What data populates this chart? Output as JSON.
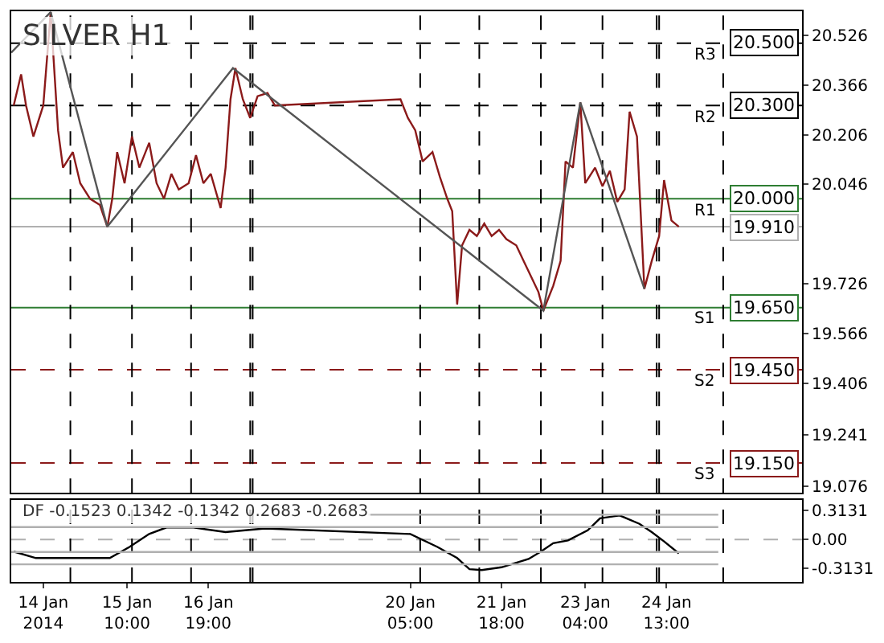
{
  "chart_data": [
    {
      "type": "line",
      "title": "SILVER H1",
      "tick_labels": "y",
      "grid": false,
      "xlim": [
        "2014-01-13T11:00",
        "2014-01-26T20:00"
      ],
      "ylim": [
        19.054,
        20.603
      ],
      "yticks": [
        20.526,
        20.366,
        20.206,
        20.046,
        19.726,
        19.566,
        19.406,
        19.241,
        19.076
      ],
      "series": [
        {
          "color": "#8b1a1a",
          "x": [
            "2014-01-13T12:00",
            "2014-01-13T15:00",
            "2014-01-13T17:00",
            "2014-01-13T20:00",
            "2014-01-14T00:00",
            "2014-01-14T03:00",
            "2014-01-14T06:00",
            "2014-01-14T08:00",
            "2014-01-14T12:00",
            "2014-01-14T15:00",
            "2014-01-14T19:00",
            "2014-01-14T23:00",
            "2014-01-15T02:00",
            "2014-01-15T04:00",
            "2014-01-15T06:00",
            "2014-01-15T09:00",
            "2014-01-15T12:00",
            "2014-01-15T15:00",
            "2014-01-15T19:00",
            "2014-01-15T22:00",
            "2014-01-16T01:00",
            "2014-01-16T04:00",
            "2014-01-16T07:00",
            "2014-01-16T11:00",
            "2014-01-16T14:00",
            "2014-01-16T17:00",
            "2014-01-16T20:00",
            "2014-01-17T00:00",
            "2014-01-17T02:00",
            "2014-01-17T04:00",
            "2014-01-17T06:00",
            "2014-01-17T09:00",
            "2014-01-17T12:00",
            "2014-01-17T15:00",
            "2014-01-17T19:00",
            "2014-01-17T22:00",
            "2014-01-20T01:00",
            "2014-01-20T04:00",
            "2014-01-20T07:00",
            "2014-01-20T10:00",
            "2014-01-20T14:00",
            "2014-01-20T17:00",
            "2014-01-20T20:00",
            "2014-01-20T22:00",
            "2014-01-21T00:00",
            "2014-01-21T02:00",
            "2014-01-21T05:00",
            "2014-01-21T08:00",
            "2014-01-21T11:00",
            "2014-01-21T14:00",
            "2014-01-21T17:00",
            "2014-01-21T20:00",
            "2014-01-22T00:00",
            "2014-01-22T03:00",
            "2014-01-22T06:00",
            "2014-01-22T09:00",
            "2014-01-22T11:00",
            "2014-01-22T15:00",
            "2014-01-22T18:00",
            "2014-01-22T20:00",
            "2014-01-22T23:00",
            "2014-01-23T02:00",
            "2014-01-23T04:00",
            "2014-01-23T08:00",
            "2014-01-23T11:00",
            "2014-01-23T14:00",
            "2014-01-23T17:00",
            "2014-01-23T20:00",
            "2014-01-23T22:00",
            "2014-01-24T01:00",
            "2014-01-24T04:00",
            "2014-01-24T07:00",
            "2014-01-24T10:00",
            "2014-01-24T12:00",
            "2014-01-24T15:00",
            "2014-01-24T18:00"
          ],
          "values": [
            20.3,
            20.4,
            20.3,
            20.2,
            20.3,
            20.6,
            20.22,
            20.1,
            20.15,
            20.05,
            20.0,
            19.98,
            19.91,
            20.0,
            20.15,
            20.05,
            20.2,
            20.1,
            20.18,
            20.05,
            20.0,
            20.08,
            20.03,
            20.05,
            20.14,
            20.05,
            20.08,
            19.97,
            20.1,
            20.32,
            20.42,
            20.32,
            20.26,
            20.33,
            20.34,
            20.3,
            20.32,
            20.26,
            20.22,
            20.12,
            20.15,
            20.07,
            20.0,
            19.96,
            19.66,
            19.85,
            19.9,
            19.88,
            19.92,
            19.88,
            19.9,
            19.87,
            19.85,
            19.8,
            19.75,
            19.7,
            19.64,
            19.72,
            19.8,
            20.12,
            20.1,
            20.31,
            20.05,
            20.1,
            20.04,
            20.09,
            19.99,
            20.03,
            20.28,
            20.2,
            19.71,
            19.8,
            19.88,
            20.06,
            19.93,
            19.91
          ]
        },
        {
          "color": "#555555",
          "x": [
            "2014-01-13T11:00",
            "2014-01-14T03:00",
            "2014-01-15T02:00",
            "2014-01-17T05:00",
            "2014-01-22T11:00",
            "2014-01-23T02:00",
            "2014-01-24T04:00"
          ],
          "values": [
            20.47,
            20.6,
            19.91,
            20.42,
            19.64,
            20.31,
            19.71
          ]
        }
      ],
      "annotations": [
        {
          "text": "R3",
          "x": "2014-01-25T10:00",
          "y": 20.5
        },
        {
          "text": "R2",
          "x": "2014-01-25T10:00",
          "y": 20.3
        },
        {
          "text": "R1",
          "x": "2014-01-25T10:00",
          "y": 20.0
        },
        {
          "text": "S1",
          "x": "2014-01-25T10:00",
          "y": 19.65
        },
        {
          "text": "S2",
          "x": "2014-01-25T10:00",
          "y": 19.45
        },
        {
          "text": "S3",
          "x": "2014-01-25T10:00",
          "y": 19.15
        }
      ],
      "ref_lines": [
        {
          "axis": "y",
          "value": 20.5,
          "label": "20.500",
          "color": "#000000",
          "line_style": "dashed"
        },
        {
          "axis": "y",
          "value": 20.3,
          "label": "20.300",
          "color": "#000000",
          "line_style": "dashed"
        },
        {
          "axis": "y",
          "value": 20.0,
          "label": "20.000",
          "color": "#2e7d32",
          "line_style": "solid"
        },
        {
          "axis": "y",
          "value": 19.65,
          "label": "19.650",
          "color": "#2e7d32",
          "line_style": "solid"
        },
        {
          "axis": "y",
          "value": 19.45,
          "label": "19.450",
          "color": "#8b1a1a",
          "line_style": "dashed"
        },
        {
          "axis": "y",
          "value": 19.15,
          "label": "19.150",
          "color": "#8b1a1a",
          "line_style": "dashed"
        },
        {
          "axis": "y",
          "value": 19.91,
          "label": "19.910",
          "color": "#b0b0b0",
          "line_style": "solid"
        },
        {
          "axis": "x",
          "value": "2014-01-14T11:00",
          "color": "#000000",
          "line_style": "dashed"
        },
        {
          "axis": "x",
          "value": "2014-01-15T12:00",
          "color": "#000000",
          "line_style": "dashed"
        },
        {
          "axis": "x",
          "value": "2014-01-16T12:00",
          "color": "#000000",
          "line_style": "dashed"
        },
        {
          "axis": "x",
          "value": "2014-01-17T12:00",
          "color": "#000000",
          "line_style": "dashed"
        },
        {
          "axis": "x",
          "value": "2014-01-17T13:00",
          "color": "#000000",
          "line_style": "dashed"
        },
        {
          "axis": "x",
          "value": "2014-01-20T09:00",
          "color": "#000000",
          "line_style": "dashed"
        },
        {
          "axis": "x",
          "value": "2014-01-21T09:00",
          "color": "#000000",
          "line_style": "dashed"
        },
        {
          "axis": "x",
          "value": "2014-01-22T10:00",
          "color": "#000000",
          "line_style": "dashed"
        },
        {
          "axis": "x",
          "value": "2014-01-23T11:00",
          "color": "#000000",
          "line_style": "dashed"
        },
        {
          "axis": "x",
          "value": "2014-01-24T09:00",
          "color": "#000000",
          "line_style": "dashed"
        },
        {
          "axis": "x",
          "value": "2014-01-24T10:00",
          "color": "#000000",
          "line_style": "dashed"
        },
        {
          "axis": "x",
          "value": "2014-01-25T12:00",
          "color": "#000000",
          "line_style": "dashed"
        }
      ]
    },
    {
      "type": "line",
      "title": "DF -0.1523 0.1342 -0.1342 0.2683 -0.2683",
      "grid": false,
      "xlim": [
        "2014-01-13T11:00",
        "2014-01-26T20:00"
      ],
      "ylim": [
        -0.458,
        0.43
      ],
      "xticks": [
        {
          "value": "2014-01-14",
          "label": "14 Jan 2014"
        },
        {
          "value": "2014-01-15T10:00",
          "label": "15 Jan 10:00"
        },
        {
          "value": "2014-01-16T19:00",
          "label": "16 Jan 19:00"
        },
        {
          "value": "2014-01-20T05:00",
          "label": "20 Jan 05:00"
        },
        {
          "value": "2014-01-21T18:00",
          "label": "21 Jan 18:00"
        },
        {
          "value": "2014-01-23T04:00",
          "label": "23 Jan 04:00"
        },
        {
          "value": "2014-01-24T13:00",
          "label": "24 Jan 13:00"
        }
      ],
      "yticks": [
        0.3131,
        {
          "value": 0,
          "label": "0.00"
        },
        -0.3131
      ],
      "series": [
        {
          "color": "#000000",
          "x": [
            "2014-01-13T12:00",
            "2014-01-13T21:00",
            "2014-01-14T16:00",
            "2014-01-15T03:00",
            "2014-01-15T11:00",
            "2014-01-15T19:00",
            "2014-01-16T02:00",
            "2014-01-16T13:00",
            "2014-01-17T02:00",
            "2014-01-17T18:00",
            "2014-01-20T05:00",
            "2014-01-20T16:00",
            "2014-01-21T00:00",
            "2014-01-21T05:00",
            "2014-01-21T10:00",
            "2014-01-21T18:00",
            "2014-01-22T05:00",
            "2014-01-22T10:00",
            "2014-01-22T15:00",
            "2014-01-22T21:00",
            "2014-01-23T05:00",
            "2014-01-23T10:00",
            "2014-01-23T18:00",
            "2014-01-24T02:00",
            "2014-01-24T07:00",
            "2014-01-24T12:00",
            "2014-01-24T18:00"
          ],
          "values": [
            -0.13,
            -0.2,
            -0.2,
            -0.2,
            -0.08,
            0.06,
            0.13,
            0.13,
            0.08,
            0.12,
            0.06,
            -0.08,
            -0.2,
            -0.32,
            -0.33,
            -0.3,
            -0.21,
            -0.13,
            -0.04,
            -0.01,
            0.1,
            0.23,
            0.26,
            0.17,
            0.08,
            -0.02,
            -0.15
          ]
        },
        {
          "color": "#b0b0b0",
          "x": [
            "2014-01-19T12:00",
            "2014-01-25T10:00"
          ],
          "values": [
            0.2683,
            0.2683
          ]
        },
        {
          "color": "#b0b0b0",
          "x": [
            "2014-01-13T11:00",
            "2014-01-25T10:00"
          ],
          "values": [
            0.1342,
            0.1342
          ]
        },
        {
          "color": "#b0b0b0",
          "x": [
            "2014-01-13T11:00",
            "2014-01-25T10:00"
          ],
          "values": [
            -0.1342,
            -0.1342
          ]
        },
        {
          "color": "#b0b0b0",
          "x": [
            "2014-01-13T11:00",
            "2014-01-25T10:00"
          ],
          "values": [
            -0.2683,
            -0.2683
          ]
        }
      ],
      "ref_lines": [
        {
          "axis": "y",
          "value": 0,
          "color": "#b0b0b0",
          "line_style": "dashed"
        },
        {
          "axis": "x",
          "value": "2014-01-14T11:00",
          "color": "#000000",
          "line_style": "dashed"
        },
        {
          "axis": "x",
          "value": "2014-01-15T12:00",
          "color": "#000000",
          "line_style": "dashed"
        },
        {
          "axis": "x",
          "value": "2014-01-16T12:00",
          "color": "#000000",
          "line_style": "dashed"
        },
        {
          "axis": "x",
          "value": "2014-01-17T12:00",
          "color": "#000000",
          "line_style": "dashed"
        },
        {
          "axis": "x",
          "value": "2014-01-17T13:00",
          "color": "#000000",
          "line_style": "dashed"
        },
        {
          "axis": "x",
          "value": "2014-01-20T09:00",
          "color": "#000000",
          "line_style": "dashed"
        },
        {
          "axis": "x",
          "value": "2014-01-21T09:00",
          "color": "#000000",
          "line_style": "dashed"
        },
        {
          "axis": "x",
          "value": "2014-01-22T10:00",
          "color": "#000000",
          "line_style": "dashed"
        },
        {
          "axis": "x",
          "value": "2014-01-23T11:00",
          "color": "#000000",
          "line_style": "dashed"
        },
        {
          "axis": "x",
          "value": "2014-01-24T09:00",
          "color": "#000000",
          "line_style": "dashed"
        },
        {
          "axis": "x",
          "value": "2014-01-24T10:00",
          "color": "#000000",
          "line_style": "dashed"
        },
        {
          "axis": "x",
          "value": "2014-01-25T12:00",
          "color": "#000000",
          "line_style": "dashed"
        }
      ]
    }
  ]
}
